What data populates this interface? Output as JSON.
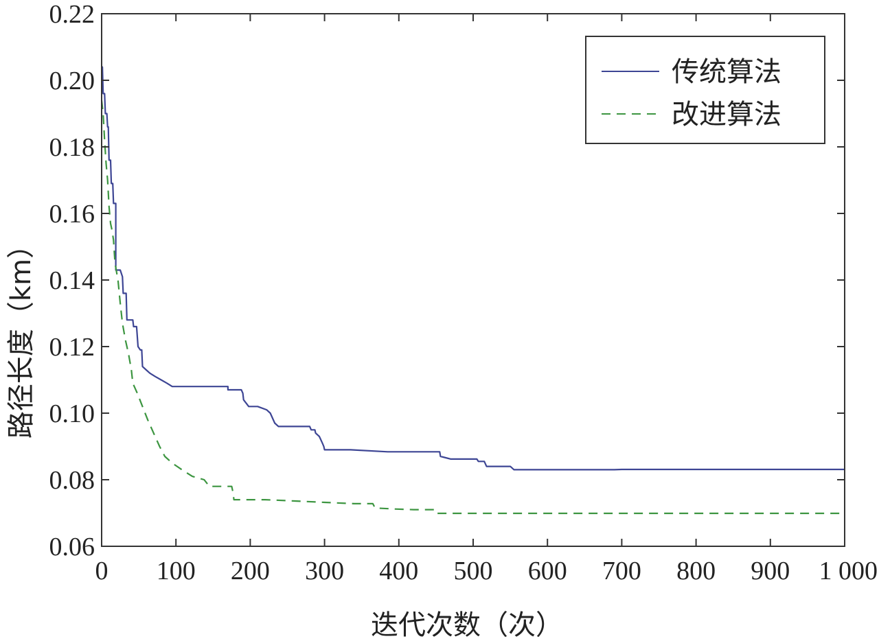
{
  "chart_data": {
    "type": "line",
    "title": "",
    "xlabel": "迭代次数（次）",
    "ylabel": "路径长度（km）",
    "xlim": [
      0,
      1000
    ],
    "ylim": [
      0.06,
      0.22
    ],
    "xticks": [
      0,
      100,
      200,
      300,
      400,
      500,
      600,
      700,
      800,
      900,
      1000
    ],
    "xtick_labels": [
      "0",
      "100",
      "200",
      "300",
      "400",
      "500",
      "600",
      "700",
      "800",
      "900",
      "1 000"
    ],
    "yticks": [
      0.06,
      0.08,
      0.1,
      0.12,
      0.14,
      0.16,
      0.18,
      0.2,
      0.22
    ],
    "ytick_labels": [
      "0.06",
      "0.08",
      "0.10",
      "0.12",
      "0.14",
      "0.16",
      "0.18",
      "0.20",
      "0.22"
    ],
    "grid": false,
    "legend_position": "top-right",
    "series": [
      {
        "name": "传统算法",
        "color": "#3d4594",
        "style": "solid",
        "points": [
          [
            0,
            0.204
          ],
          [
            1,
            0.204
          ],
          [
            2,
            0.196
          ],
          [
            4,
            0.196
          ],
          [
            5,
            0.19
          ],
          [
            7,
            0.19
          ],
          [
            8,
            0.186
          ],
          [
            9,
            0.186
          ],
          [
            10,
            0.176
          ],
          [
            12,
            0.176
          ],
          [
            13,
            0.169
          ],
          [
            15,
            0.169
          ],
          [
            16,
            0.163
          ],
          [
            19,
            0.163
          ],
          [
            19,
            0.143
          ],
          [
            25,
            0.143
          ],
          [
            28,
            0.141
          ],
          [
            29,
            0.136
          ],
          [
            33,
            0.136
          ],
          [
            34,
            0.128
          ],
          [
            42,
            0.128
          ],
          [
            43,
            0.126
          ],
          [
            47,
            0.126
          ],
          [
            49,
            0.12
          ],
          [
            52,
            0.119
          ],
          [
            54,
            0.119
          ],
          [
            55,
            0.114
          ],
          [
            60,
            0.113
          ],
          [
            65,
            0.112
          ],
          [
            72,
            0.111
          ],
          [
            80,
            0.11
          ],
          [
            88,
            0.109
          ],
          [
            95,
            0.108
          ],
          [
            170,
            0.108
          ],
          [
            170,
            0.107
          ],
          [
            188,
            0.107
          ],
          [
            190,
            0.106
          ],
          [
            191,
            0.104
          ],
          [
            198,
            0.102
          ],
          [
            210,
            0.102
          ],
          [
            222,
            0.101
          ],
          [
            227,
            0.1
          ],
          [
            233,
            0.097
          ],
          [
            238,
            0.096
          ],
          [
            280,
            0.096
          ],
          [
            282,
            0.095
          ],
          [
            287,
            0.095
          ],
          [
            288,
            0.094
          ],
          [
            293,
            0.093
          ],
          [
            297,
            0.091
          ],
          [
            299,
            0.09
          ],
          [
            300,
            0.089
          ],
          [
            335,
            0.089
          ],
          [
            385,
            0.0884
          ],
          [
            455,
            0.0884
          ],
          [
            456,
            0.087
          ],
          [
            465,
            0.0865
          ],
          [
            470,
            0.0862
          ],
          [
            505,
            0.0862
          ],
          [
            507,
            0.0855
          ],
          [
            515,
            0.0855
          ],
          [
            518,
            0.084
          ],
          [
            550,
            0.084
          ],
          [
            555,
            0.083
          ],
          [
            690,
            0.083
          ],
          [
            700,
            0.0831
          ],
          [
            1000,
            0.0831
          ]
        ]
      },
      {
        "name": "改进算法",
        "color": "#3c9540",
        "style": "dashed",
        "points": [
          [
            0,
            0.194
          ],
          [
            2,
            0.19
          ],
          [
            4,
            0.182
          ],
          [
            6,
            0.175
          ],
          [
            8,
            0.17
          ],
          [
            10,
            0.162
          ],
          [
            12,
            0.157
          ],
          [
            14,
            0.155
          ],
          [
            16,
            0.152
          ],
          [
            18,
            0.145
          ],
          [
            22,
            0.14
          ],
          [
            25,
            0.133
          ],
          [
            28,
            0.127
          ],
          [
            32,
            0.122
          ],
          [
            36,
            0.118
          ],
          [
            40,
            0.113
          ],
          [
            42,
            0.109
          ],
          [
            48,
            0.106
          ],
          [
            55,
            0.102
          ],
          [
            62,
            0.098
          ],
          [
            70,
            0.094
          ],
          [
            78,
            0.09
          ],
          [
            85,
            0.087
          ],
          [
            95,
            0.085
          ],
          [
            108,
            0.083
          ],
          [
            122,
            0.081
          ],
          [
            138,
            0.08
          ],
          [
            145,
            0.078
          ],
          [
            175,
            0.078
          ],
          [
            177,
            0.076
          ],
          [
            178,
            0.074
          ],
          [
            220,
            0.074
          ],
          [
            260,
            0.0736
          ],
          [
            300,
            0.0732
          ],
          [
            340,
            0.0728
          ],
          [
            365,
            0.0728
          ],
          [
            368,
            0.0715
          ],
          [
            395,
            0.0712
          ],
          [
            420,
            0.071
          ],
          [
            450,
            0.071
          ],
          [
            452,
            0.0699
          ],
          [
            600,
            0.0699
          ],
          [
            1000,
            0.0699
          ]
        ]
      }
    ]
  }
}
